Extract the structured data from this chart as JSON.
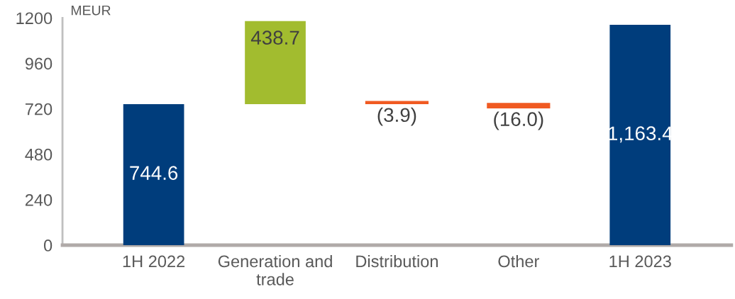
{
  "chart_data": {
    "type": "bar",
    "ylabel": "MEUR",
    "categories": [
      "1H 2022",
      "Generation and\ntrade",
      "Distribution",
      "Other",
      "1H 2023"
    ],
    "values": [
      744.6,
      438.7,
      -3.9,
      -16.0,
      1163.4
    ],
    "base": [
      0,
      744.6,
      755,
      745,
      0
    ],
    "colors": [
      "#003d7c",
      "#a2bc2f",
      "#f05a22",
      "#f05a22",
      "#003d7c"
    ],
    "value_labels": [
      "744.6",
      "438.7",
      "(3.9)",
      "(16.0)",
      "1,163.4"
    ],
    "ylim": [
      0,
      1200
    ],
    "yticks": [
      0,
      240,
      480,
      720,
      960,
      1200
    ],
    "grid": false
  }
}
